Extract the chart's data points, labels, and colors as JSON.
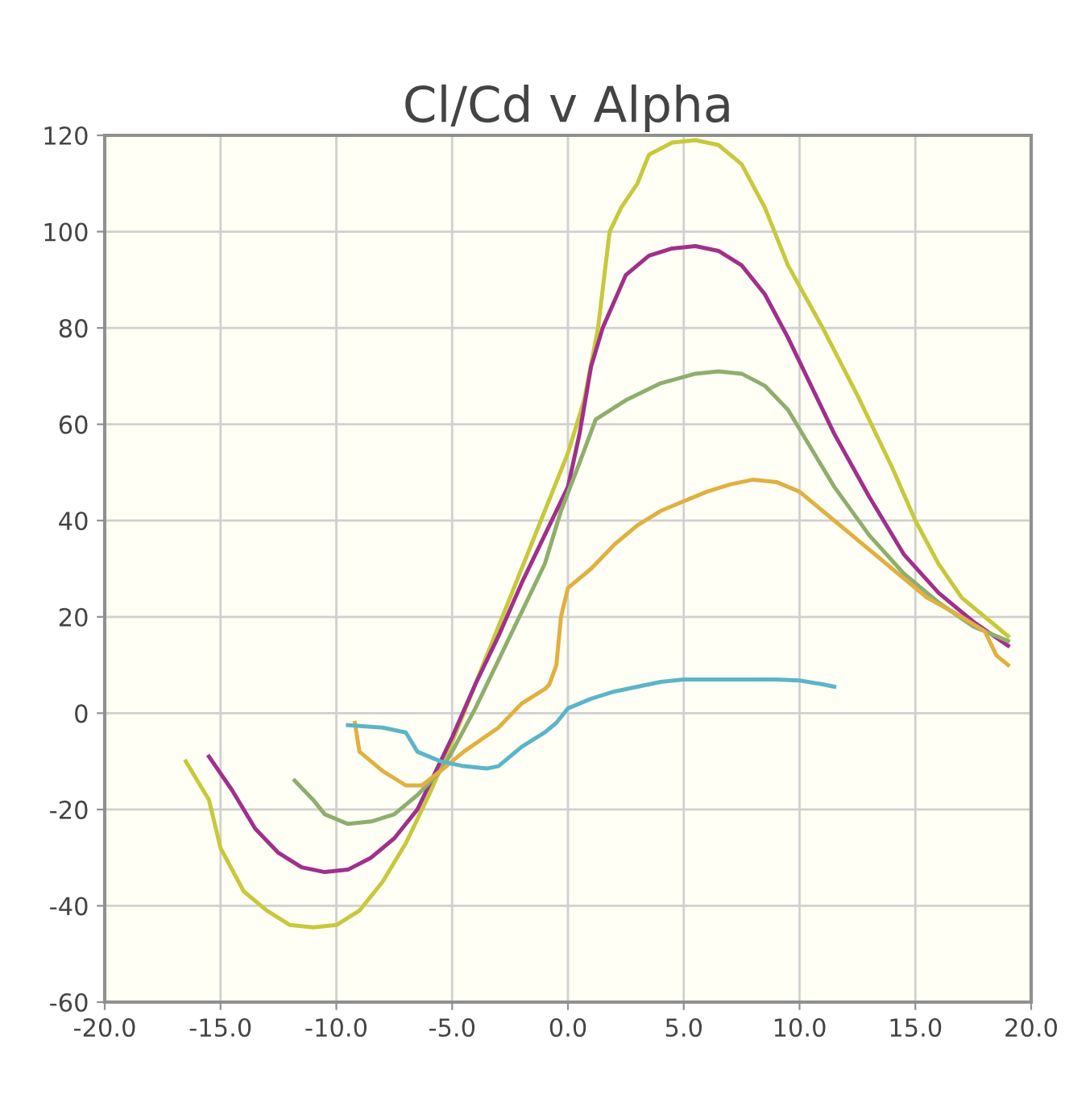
{
  "chart_data": {
    "type": "line",
    "title": "Cl/Cd v Alpha",
    "xlim": [
      -20,
      20
    ],
    "ylim": [
      -60,
      120
    ],
    "xticks": [
      {
        "value": -20,
        "label": "-20.0"
      },
      {
        "value": -15,
        "label": "-15.0"
      },
      {
        "value": -10,
        "label": "-10.0"
      },
      {
        "value": -5,
        "label": "-5.0"
      },
      {
        "value": 0,
        "label": "0.0"
      },
      {
        "value": 5,
        "label": "5.0"
      },
      {
        "value": 10,
        "label": "10.0"
      },
      {
        "value": 15,
        "label": "15.0"
      },
      {
        "value": 20,
        "label": "20.0"
      }
    ],
    "yticks": [
      -60,
      -40,
      -20,
      0,
      20,
      40,
      60,
      80,
      100,
      120
    ],
    "grid": true,
    "legend": false,
    "marker": "none",
    "line_style": "solid",
    "series": [
      {
        "color": "#c8c83c",
        "x": [
          -16.5,
          -15.5,
          -15,
          -14,
          -13,
          -12,
          -11,
          -10,
          -9,
          -8,
          -7,
          -6,
          -5,
          -4,
          -3,
          -2,
          -1,
          0,
          0.7,
          1.3,
          1.8,
          2.3,
          3,
          3.5,
          4.5,
          5.5,
          6.5,
          7.5,
          8.5,
          9.5,
          11,
          12.5,
          14,
          15,
          16,
          17,
          18,
          19
        ],
        "values": [
          -10,
          -18,
          -28,
          -37,
          -41,
          -44,
          -44.5,
          -44,
          -41,
          -35,
          -27,
          -17,
          -6,
          6,
          18,
          30,
          42,
          54,
          65,
          80,
          100,
          105,
          110,
          116,
          118.5,
          119,
          118,
          114,
          105,
          93,
          80,
          66,
          51,
          40,
          31,
          24,
          20,
          16
        ]
      },
      {
        "color": "#a0308c",
        "x": [
          -15.5,
          -14.5,
          -13.5,
          -12.5,
          -11.5,
          -10.5,
          -9.5,
          -8.5,
          -7.5,
          -6.5,
          -6,
          -5,
          -4,
          -3,
          -2,
          -1,
          0,
          0.5,
          1,
          1.5,
          2.5,
          3.5,
          4.5,
          5.5,
          6.5,
          7.5,
          8.5,
          9.5,
          10.5,
          11.5,
          13,
          14.5,
          16,
          17.5,
          19
        ],
        "values": [
          -9,
          -16,
          -24,
          -29,
          -32,
          -33,
          -32.5,
          -30,
          -26,
          -20,
          -15,
          -5,
          6,
          16,
          27,
          37,
          47,
          58,
          72,
          80,
          91,
          95,
          96.5,
          97,
          96,
          93,
          87,
          78,
          68,
          58,
          45,
          33,
          25,
          19,
          14
        ]
      },
      {
        "color": "#8fae6e",
        "x": [
          -11.8,
          -11,
          -10.5,
          -9.5,
          -8.5,
          -7.5,
          -6.5,
          -5.5,
          -5,
          -4,
          -3,
          -2,
          -1,
          -0.3,
          0.5,
          1.2,
          2.5,
          4,
          5.5,
          6.5,
          7.5,
          8.5,
          9.5,
          10.5,
          11.5,
          13,
          14.5,
          16,
          17.5,
          19
        ],
        "values": [
          -14,
          -18,
          -21,
          -23,
          -22.5,
          -21,
          -17,
          -12,
          -8,
          1,
          11,
          21,
          31,
          42,
          52,
          61,
          65,
          68.5,
          70.5,
          71,
          70.5,
          68,
          63,
          55,
          47,
          37,
          29,
          23,
          18,
          15
        ]
      },
      {
        "color": "#e0b040",
        "x": [
          -9.2,
          -9,
          -8,
          -7,
          -6.3,
          -5.5,
          -4.5,
          -3,
          -2,
          -1,
          -0.8,
          -0.5,
          -0.3,
          0,
          1,
          2,
          3,
          4,
          5,
          6,
          7,
          8,
          9,
          10,
          11,
          12.5,
          14,
          15.5,
          17,
          18,
          18.5,
          19
        ],
        "values": [
          -2,
          -8,
          -12,
          -15,
          -15,
          -12,
          -8,
          -3,
          2,
          5,
          6,
          10,
          20,
          26,
          30,
          35,
          39,
          42,
          44,
          46,
          47.5,
          48.5,
          48,
          46,
          42,
          36,
          30,
          24,
          20,
          17,
          12,
          10
        ]
      },
      {
        "color": "#5bb5c8",
        "x": [
          -9.5,
          -8,
          -7,
          -6.5,
          -5.5,
          -4.5,
          -3.5,
          -3,
          -2,
          -1,
          -0.5,
          0,
          1,
          2,
          3,
          4,
          5,
          6,
          7,
          8,
          9,
          10,
          11,
          11.5
        ],
        "values": [
          -2.5,
          -3,
          -4,
          -8,
          -10,
          -11,
          -11.5,
          -11,
          -7,
          -4,
          -2,
          1,
          3,
          4.5,
          5.5,
          6.5,
          7,
          7,
          7,
          7,
          7,
          6.8,
          6,
          5.5
        ]
      }
    ]
  }
}
